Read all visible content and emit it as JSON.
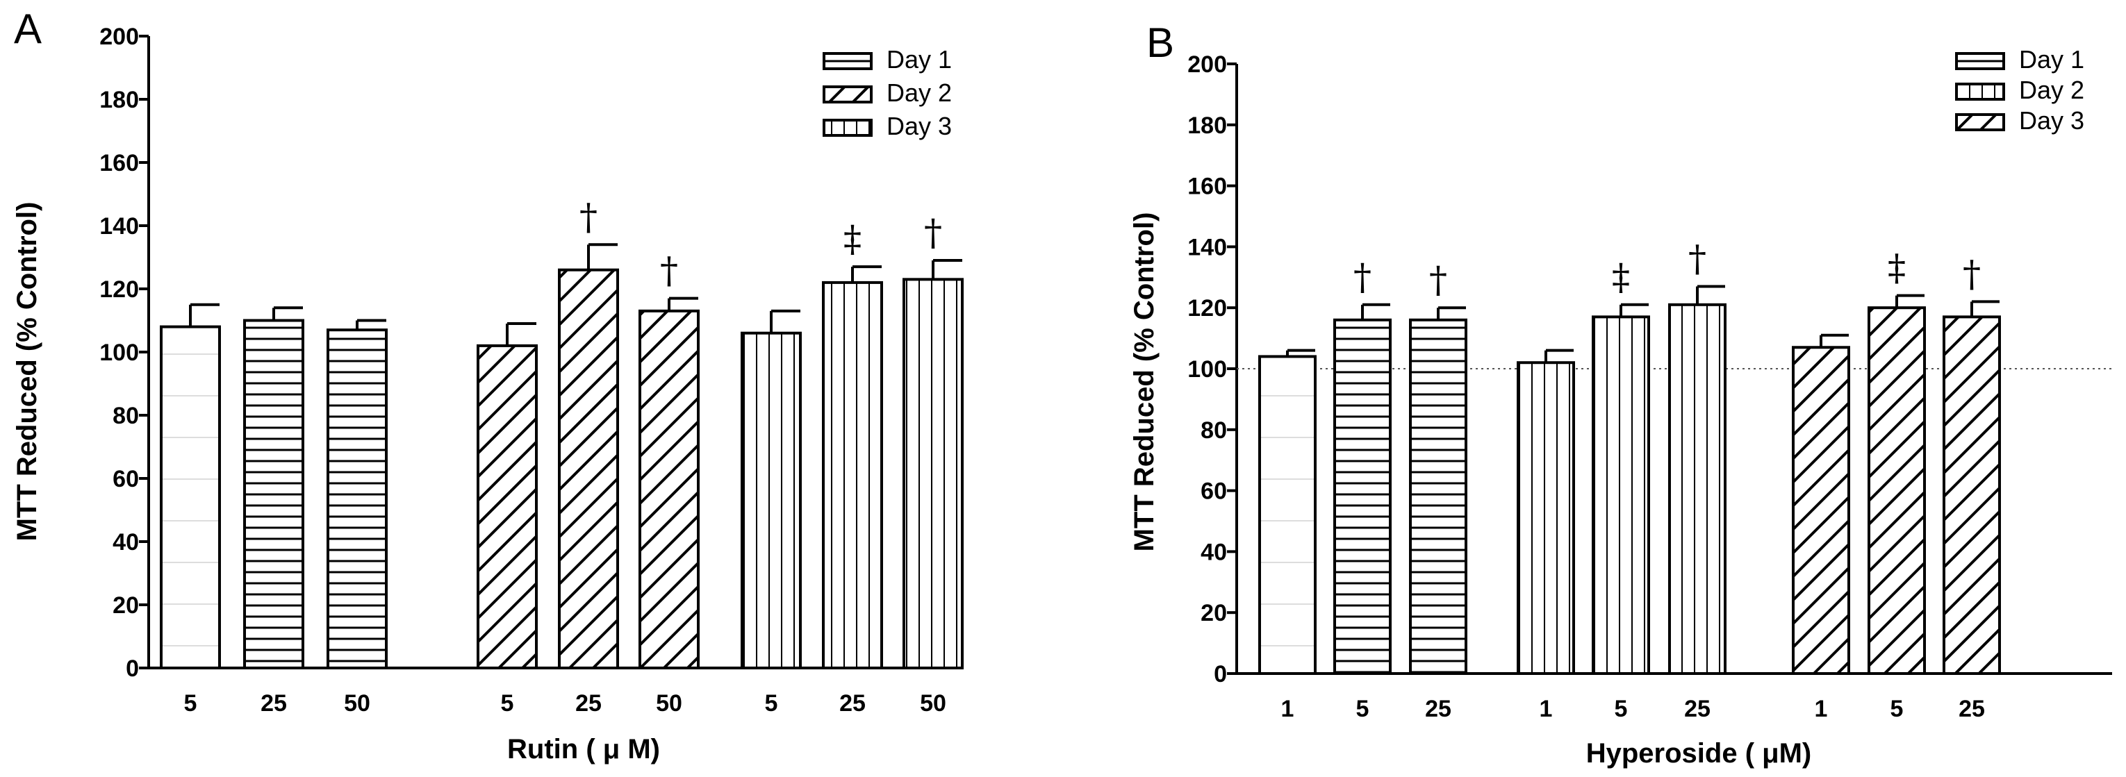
{
  "chart_data": [
    {
      "type": "bar",
      "panel_label": "A",
      "xlabel": "Rutin ( μ M)",
      "ylabel": "MTT Reduced (% Control)",
      "ylim": [
        0,
        200
      ],
      "yticks": [
        0,
        20,
        40,
        60,
        80,
        100,
        120,
        140,
        160,
        180,
        200
      ],
      "reference_line": null,
      "legend": [
        "Day 1",
        "Day 2",
        "Day 3"
      ],
      "legend_patterns": [
        "horizontal",
        "diagonal",
        "vertical"
      ],
      "groups": [
        {
          "series": "Day 1",
          "pattern": "horizontal",
          "bars": [
            {
              "dose": "5",
              "value": 108,
              "error": 7,
              "pattern": "plain",
              "sig": ""
            },
            {
              "dose": "25",
              "value": 110,
              "error": 4,
              "pattern": "horizontal",
              "sig": ""
            },
            {
              "dose": "50",
              "value": 107,
              "error": 3,
              "pattern": "horizontal",
              "sig": ""
            }
          ]
        },
        {
          "series": "Day 2",
          "pattern": "diagonal",
          "bars": [
            {
              "dose": "5",
              "value": 102,
              "error": 7,
              "pattern": "diagonal",
              "sig": ""
            },
            {
              "dose": "25",
              "value": 126,
              "error": 8,
              "pattern": "diagonal",
              "sig": "†"
            },
            {
              "dose": "50",
              "value": 113,
              "error": 4,
              "pattern": "diagonal",
              "sig": "†"
            }
          ]
        },
        {
          "series": "Day 3",
          "pattern": "vertical",
          "bars": [
            {
              "dose": "5",
              "value": 106,
              "error": 7,
              "pattern": "vertical",
              "sig": ""
            },
            {
              "dose": "25",
              "value": 122,
              "error": 5,
              "pattern": "vertical",
              "sig": "‡"
            },
            {
              "dose": "50",
              "value": 123,
              "error": 6,
              "pattern": "vertical",
              "sig": "†"
            }
          ]
        }
      ]
    },
    {
      "type": "bar",
      "panel_label": "B",
      "xlabel": "Hyperoside ( μM)",
      "ylabel": "MTT Reduced (% Control)",
      "ylim": [
        0,
        200
      ],
      "yticks": [
        0,
        20,
        40,
        60,
        80,
        100,
        120,
        140,
        160,
        180,
        200
      ],
      "reference_line": 100,
      "legend": [
        "Day 1",
        "Day 2",
        "Day 3"
      ],
      "legend_patterns": [
        "horizontal",
        "vertical",
        "diagonal"
      ],
      "groups": [
        {
          "series": "Day 1",
          "pattern": "horizontal",
          "bars": [
            {
              "dose": "1",
              "value": 104,
              "error": 2,
              "pattern": "plain",
              "sig": ""
            },
            {
              "dose": "5",
              "value": 116,
              "error": 5,
              "pattern": "horizontal",
              "sig": "†"
            },
            {
              "dose": "25",
              "value": 116,
              "error": 4,
              "pattern": "horizontal",
              "sig": "†"
            }
          ]
        },
        {
          "series": "Day 2",
          "pattern": "vertical",
          "bars": [
            {
              "dose": "1",
              "value": 102,
              "error": 4,
              "pattern": "vertical",
              "sig": ""
            },
            {
              "dose": "5",
              "value": 117,
              "error": 4,
              "pattern": "vertical",
              "sig": "‡"
            },
            {
              "dose": "25",
              "value": 121,
              "error": 6,
              "pattern": "vertical",
              "sig": "†"
            }
          ]
        },
        {
          "series": "Day 3",
          "pattern": "diagonal",
          "bars": [
            {
              "dose": "1",
              "value": 107,
              "error": 4,
              "pattern": "diagonal",
              "sig": ""
            },
            {
              "dose": "5",
              "value": 120,
              "error": 4,
              "pattern": "diagonal",
              "sig": "‡"
            },
            {
              "dose": "25",
              "value": 117,
              "error": 5,
              "pattern": "diagonal",
              "sig": "†"
            }
          ]
        }
      ]
    }
  ]
}
